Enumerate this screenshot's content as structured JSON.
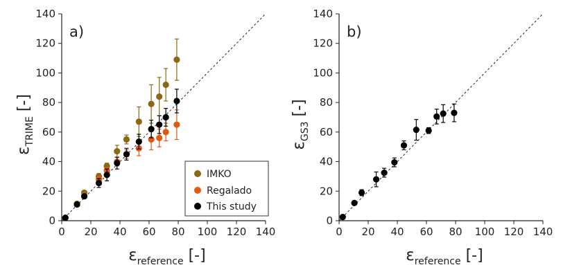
{
  "chart_data": [
    {
      "type": "scatter",
      "panel_label": "a)",
      "xlabel": {
        "symbol": "ε",
        "subscript": "reference",
        "unit": "[-]"
      },
      "ylabel": {
        "symbol": "ε",
        "subscript": "TRIME",
        "unit": "[-]"
      },
      "xlim": [
        0,
        140
      ],
      "ylim": [
        0,
        140
      ],
      "xticks": [
        "0",
        "20",
        "40",
        "60",
        "80",
        "100",
        "120",
        "140"
      ],
      "yticks": [
        "0",
        "20",
        "40",
        "60",
        "80",
        "100",
        "120",
        "140"
      ],
      "reference_line": "1:1 dashed",
      "legend_position": "bottom-right",
      "series": [
        {
          "name": "IMKO",
          "color": "#8b6914",
          "points": [
            {
              "x": 2.5,
              "y": 2,
              "err": 0
            },
            {
              "x": 10.5,
              "y": 11.5,
              "err": 0.8
            },
            {
              "x": 15.5,
              "y": 19,
              "err": 1
            },
            {
              "x": 25.5,
              "y": 30,
              "err": 2
            },
            {
              "x": 31,
              "y": 37,
              "err": 2
            },
            {
              "x": 38,
              "y": 47,
              "err": 4
            },
            {
              "x": 44.5,
              "y": 55,
              "err": 3
            },
            {
              "x": 53,
              "y": 67,
              "err": 10
            },
            {
              "x": 61.5,
              "y": 79,
              "err": 13
            },
            {
              "x": 67,
              "y": 84,
              "err": 13
            },
            {
              "x": 71.5,
              "y": 92,
              "err": 11
            },
            {
              "x": 79,
              "y": 109,
              "err": 14
            }
          ]
        },
        {
          "name": "Regalado",
          "color": "#e05a10",
          "points": [
            {
              "x": 2.5,
              "y": 2,
              "err": 0
            },
            {
              "x": 10.5,
              "y": 11,
              "err": 0.8
            },
            {
              "x": 15.5,
              "y": 17,
              "err": 1
            },
            {
              "x": 25.5,
              "y": 28,
              "err": 2
            },
            {
              "x": 31,
              "y": 34,
              "err": 2
            },
            {
              "x": 38,
              "y": 40,
              "err": 3
            },
            {
              "x": 44.5,
              "y": 45,
              "err": 3
            },
            {
              "x": 53,
              "y": 49,
              "err": 5
            },
            {
              "x": 61.5,
              "y": 55,
              "err": 7
            },
            {
              "x": 67,
              "y": 56,
              "err": 6
            },
            {
              "x": 71.5,
              "y": 60,
              "err": 6
            },
            {
              "x": 79,
              "y": 65,
              "err": 10
            }
          ]
        },
        {
          "name": "This study",
          "color": "#000000",
          "points": [
            {
              "x": 2.5,
              "y": 2,
              "err": 0
            },
            {
              "x": 10.5,
              "y": 11,
              "err": 0.8
            },
            {
              "x": 15.5,
              "y": 16.5,
              "err": 1.5
            },
            {
              "x": 25.5,
              "y": 25.5,
              "err": 3
            },
            {
              "x": 31,
              "y": 31,
              "err": 4
            },
            {
              "x": 38,
              "y": 39,
              "err": 4
            },
            {
              "x": 44.5,
              "y": 45,
              "err": 4
            },
            {
              "x": 53,
              "y": 53.5,
              "err": 5
            },
            {
              "x": 61.5,
              "y": 62,
              "err": 6
            },
            {
              "x": 67,
              "y": 65,
              "err": 6
            },
            {
              "x": 71.5,
              "y": 70,
              "err": 6
            },
            {
              "x": 79,
              "y": 81,
              "err": 8
            }
          ]
        }
      ]
    },
    {
      "type": "scatter",
      "panel_label": "b)",
      "xlabel": {
        "symbol": "ε",
        "subscript": "reference",
        "unit": "[-]"
      },
      "ylabel": {
        "symbol": "ε",
        "subscript": "GS3",
        "unit": "[-]"
      },
      "xlim": [
        0,
        140
      ],
      "ylim": [
        0,
        140
      ],
      "xticks": [
        "0",
        "20",
        "40",
        "60",
        "80",
        "100",
        "120",
        "140"
      ],
      "yticks": [
        "0",
        "20",
        "40",
        "60",
        "80",
        "100",
        "120",
        "140"
      ],
      "reference_line": "1:1 dashed",
      "series": [
        {
          "color": "#000000",
          "points": [
            {
              "x": 2.5,
              "y": 2.5,
              "err": 0
            },
            {
              "x": 10.5,
              "y": 12,
              "err": 1
            },
            {
              "x": 15.5,
              "y": 19,
              "err": 2
            },
            {
              "x": 25.5,
              "y": 28,
              "err": 5
            },
            {
              "x": 31,
              "y": 32.5,
              "err": 3
            },
            {
              "x": 38,
              "y": 39.5,
              "err": 3
            },
            {
              "x": 44.5,
              "y": 51,
              "err": 3
            },
            {
              "x": 53,
              "y": 61.5,
              "err": 7
            },
            {
              "x": 61.5,
              "y": 61,
              "err": 2
            },
            {
              "x": 67,
              "y": 70.5,
              "err": 5
            },
            {
              "x": 71.5,
              "y": 72.5,
              "err": 6
            },
            {
              "x": 79,
              "y": 73,
              "err": 6
            }
          ]
        }
      ]
    }
  ]
}
